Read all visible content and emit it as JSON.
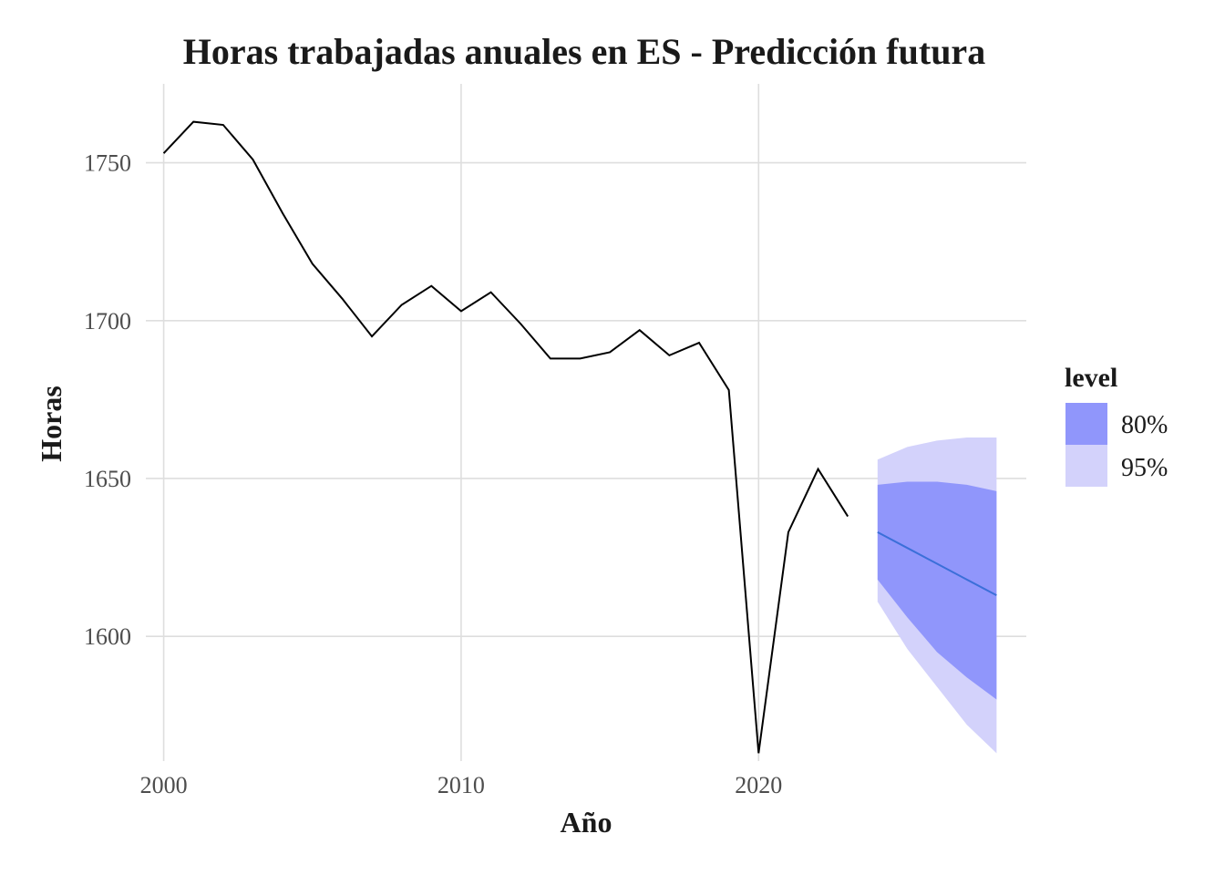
{
  "chart_data": {
    "type": "line",
    "title": "Horas trabajadas anuales en ES - Predicción futura",
    "xlabel": "Año",
    "ylabel": "Horas",
    "xlim": [
      1999.4,
      2029.0
    ],
    "ylim": [
      1560.5,
      1775.0
    ],
    "x_ticks": [
      2000,
      2010,
      2020
    ],
    "y_ticks": [
      1600,
      1650,
      1700,
      1750
    ],
    "grid": true,
    "legend_position": "right",
    "legend": {
      "title": "level",
      "entries": [
        "80%",
        "95%"
      ]
    },
    "colors": {
      "history_line": "#000000",
      "forecast_line": "#3b6fd9",
      "band_80": "#9096fb",
      "band_95": "#d3d2fb"
    },
    "series": [
      {
        "kind": "history",
        "x": [
          2000,
          2001,
          2002,
          2003,
          2004,
          2005,
          2006,
          2007,
          2008,
          2009,
          2010,
          2011,
          2012,
          2013,
          2014,
          2015,
          2016,
          2017,
          2018,
          2019,
          2020,
          2021,
          2022,
          2023
        ],
        "y": [
          1753,
          1763,
          1762,
          1751,
          1734,
          1718,
          1707,
          1695,
          1705,
          1711,
          1703,
          1709,
          1699,
          1688,
          1688,
          1690,
          1697,
          1689,
          1693,
          1678,
          1563,
          1633,
          1653,
          1638
        ]
      },
      {
        "kind": "forecast",
        "x": [
          2024,
          2025,
          2026,
          2027,
          2028
        ],
        "y": [
          1633,
          1628,
          1623,
          1618,
          1613
        ],
        "lo80": [
          1618,
          1606,
          1595,
          1587,
          1580
        ],
        "hi80": [
          1648,
          1649,
          1649,
          1648,
          1646
        ],
        "lo95": [
          1611,
          1596,
          1584,
          1572,
          1563
        ],
        "hi95": [
          1656,
          1660,
          1662,
          1663,
          1663
        ]
      }
    ]
  }
}
